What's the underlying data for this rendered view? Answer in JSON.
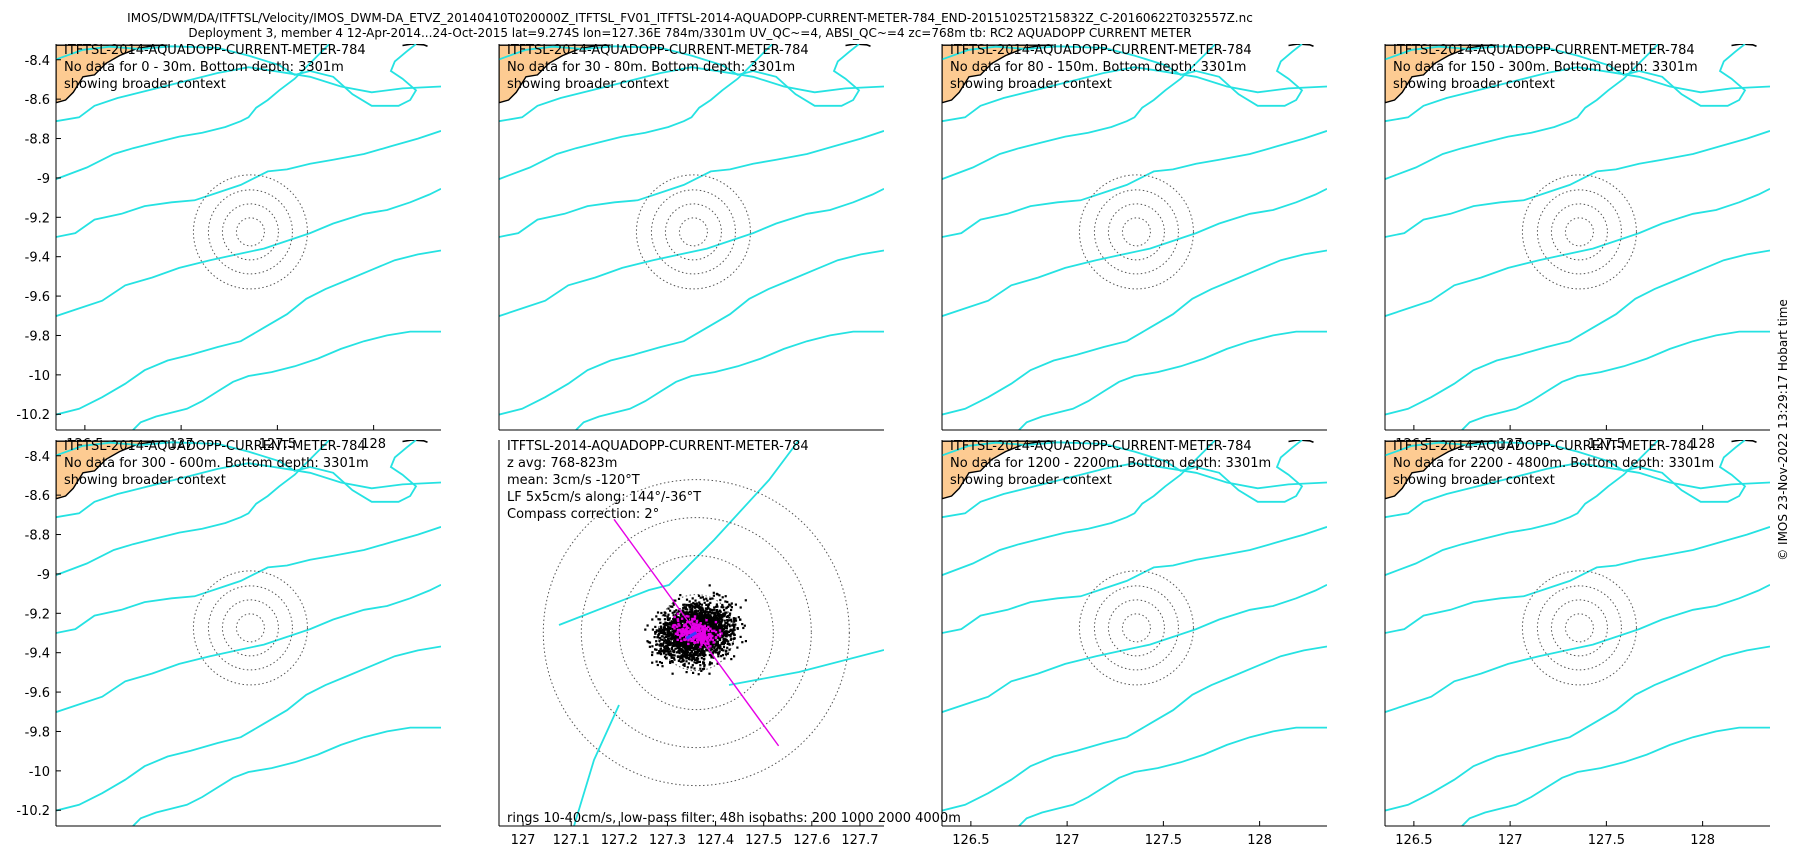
{
  "figure": {
    "header_line1": "IMOS/DWM/DA/ITFTSL/Velocity/IMOS_DWM-DA_ETVZ_20140410T020000Z_ITFTSL_FV01_ITFTSL-2014-AQUADOPP-CURRENT-METER-784_END-20151025T215832Z_C-20160622T032557Z.nc",
    "header_line2": "Deployment 3, member 4 12-Apr-2014...24-Oct-2015 lat=9.274S lon=127.36E 784m/3301m UV_QC~=4, ABSI_QC~=4 zc=768m tb: RC2 AQUADOPP CURRENT METER",
    "timestamp": "© IMOS 23-Nov-2022 13:29:17 Hobart time",
    "colors": {
      "land": "#fdcb92",
      "coast": "#000000",
      "isobath": "#25e2e2",
      "rings": "#555555",
      "points": "#000000",
      "lowpass_points": "#e600e6",
      "axis_line": "#e600e6",
      "mean_arrow": "#3b3bff"
    }
  },
  "chart_data": [
    {
      "type": "scatter",
      "title": "ITFTSL-2014-AQUADOPP-CURRENT-METER-784",
      "annotations": [
        "No data for 0 - 30m. Bottom depth: 3301m",
        "showing broader context"
      ],
      "xticks": [
        "126.5",
        "127",
        "127.5",
        "128"
      ],
      "xtick_values": [
        126.5,
        127,
        127.5,
        128
      ],
      "yticks": [
        "-8.4",
        "-8.6",
        "-8.8",
        "-9",
        "-9.2",
        "-9.4",
        "-9.6",
        "-9.8",
        "-10",
        "-10.2"
      ],
      "ytick_values": [
        -8.4,
        -8.6,
        -8.8,
        -9,
        -9.2,
        -9.4,
        -9.6,
        -9.8,
        -10,
        -10.2
      ],
      "xlim": [
        126.35,
        128.35
      ],
      "ylim": [
        -10.28,
        -8.32
      ],
      "ring_center": [
        127.36,
        -9.274
      ]
    },
    {
      "type": "scatter",
      "title": "ITFTSL-2014-AQUADOPP-CURRENT-METER-784",
      "annotations": [
        "No data for 30 - 80m. Bottom depth: 3301m",
        "showing broader context"
      ],
      "xticks": [],
      "xtick_values": [],
      "yticks": [],
      "ytick_values": [],
      "xlim": [
        126.35,
        128.35
      ],
      "ylim": [
        -10.28,
        -8.32
      ],
      "ring_center": [
        127.36,
        -9.274
      ]
    },
    {
      "type": "scatter",
      "title": "ITFTSL-2014-AQUADOPP-CURRENT-METER-784",
      "annotations": [
        "No data for 80 - 150m. Bottom depth: 3301m",
        "showing broader context"
      ],
      "xticks": [],
      "xtick_values": [],
      "yticks": [],
      "ytick_values": [],
      "xlim": [
        126.35,
        128.35
      ],
      "ylim": [
        -10.28,
        -8.32
      ],
      "ring_center": [
        127.36,
        -9.274
      ]
    },
    {
      "type": "scatter",
      "title": "ITFTSL-2014-AQUADOPP-CURRENT-METER-784",
      "annotations": [
        "No data for 150 - 300m. Bottom depth: 3301m",
        "showing broader context"
      ],
      "xticks": [
        "126.5",
        "127",
        "127.5",
        "128"
      ],
      "xtick_values": [
        126.5,
        127,
        127.5,
        128
      ],
      "yticks": [],
      "ytick_values": [],
      "xlim": [
        126.35,
        128.35
      ],
      "ylim": [
        -10.28,
        -8.32
      ],
      "ring_center": [
        127.36,
        -9.274
      ]
    },
    {
      "type": "scatter",
      "title": "ITFTSL-2014-AQUADOPP-CURRENT-METER-784",
      "annotations": [
        "No data for 300 - 600m. Bottom depth: 3301m",
        "showing broader context"
      ],
      "xticks": [],
      "xtick_values": [],
      "yticks": [
        "-8.4",
        "-8.6",
        "-8.8",
        "-9",
        "-9.2",
        "-9.4",
        "-9.6",
        "-9.8",
        "-10",
        "-10.2"
      ],
      "ytick_values": [
        -8.4,
        -8.6,
        -8.8,
        -9,
        -9.2,
        -9.4,
        -9.6,
        -9.8,
        -10,
        -10.2
      ],
      "xlim": [
        126.35,
        128.35
      ],
      "ylim": [
        -10.28,
        -8.32
      ],
      "ring_center": [
        127.36,
        -9.274
      ]
    },
    {
      "type": "scatter",
      "title": "ITFTSL-2014-AQUADOPP-CURRENT-METER-784",
      "annotations": [
        "z avg: 768-823m",
        "mean: 3cm/s -120°T",
        "LF 5x5cm/s along: 144°/-36°T",
        "Compass correction: 2°"
      ],
      "footer": "rings 10-40cm/s, low-pass filter: 48h isobaths: 200 1000 2000 4000m",
      "xticks": [
        "127",
        "127.1",
        "127.2",
        "127.3",
        "127.4",
        "127.5",
        "127.6",
        "127.7"
      ],
      "xtick_values": [
        127,
        127.1,
        127.2,
        127.3,
        127.4,
        127.5,
        127.6,
        127.7
      ],
      "yticks": [],
      "ytick_values": [],
      "xlim": [
        126.95,
        127.75
      ],
      "ylim": [
        -9.745,
        -8.805
      ],
      "ring_center": [
        127.36,
        -9.274
      ],
      "mean_speed_cm_s": 3,
      "mean_dir_degT": -120,
      "lf_along_axis_degT": 144
    },
    {
      "type": "scatter",
      "title": "ITFTSL-2014-AQUADOPP-CURRENT-METER-784",
      "annotations": [
        "No data for 1200 - 2200m. Bottom depth: 3301m",
        "showing broader context"
      ],
      "xticks": [
        "126.5",
        "127",
        "127.5",
        "128"
      ],
      "xtick_values": [
        126.5,
        127,
        127.5,
        128
      ],
      "yticks": [],
      "ytick_values": [],
      "xlim": [
        126.35,
        128.35
      ],
      "ylim": [
        -10.28,
        -8.32
      ],
      "ring_center": [
        127.36,
        -9.274
      ]
    },
    {
      "type": "scatter",
      "title": "ITFTSL-2014-AQUADOPP-CURRENT-METER-784",
      "annotations": [
        "No data for 2200 - 4800m. Bottom depth: 3301m",
        "showing broader context"
      ],
      "xticks": [
        "126.5",
        "127",
        "127.5",
        "128"
      ],
      "xtick_values": [
        126.5,
        127,
        127.5,
        128
      ],
      "yticks": [],
      "ytick_values": [],
      "xlim": [
        126.35,
        128.35
      ],
      "ylim": [
        -10.28,
        -8.32
      ],
      "ring_center": [
        127.36,
        -9.274
      ]
    }
  ]
}
